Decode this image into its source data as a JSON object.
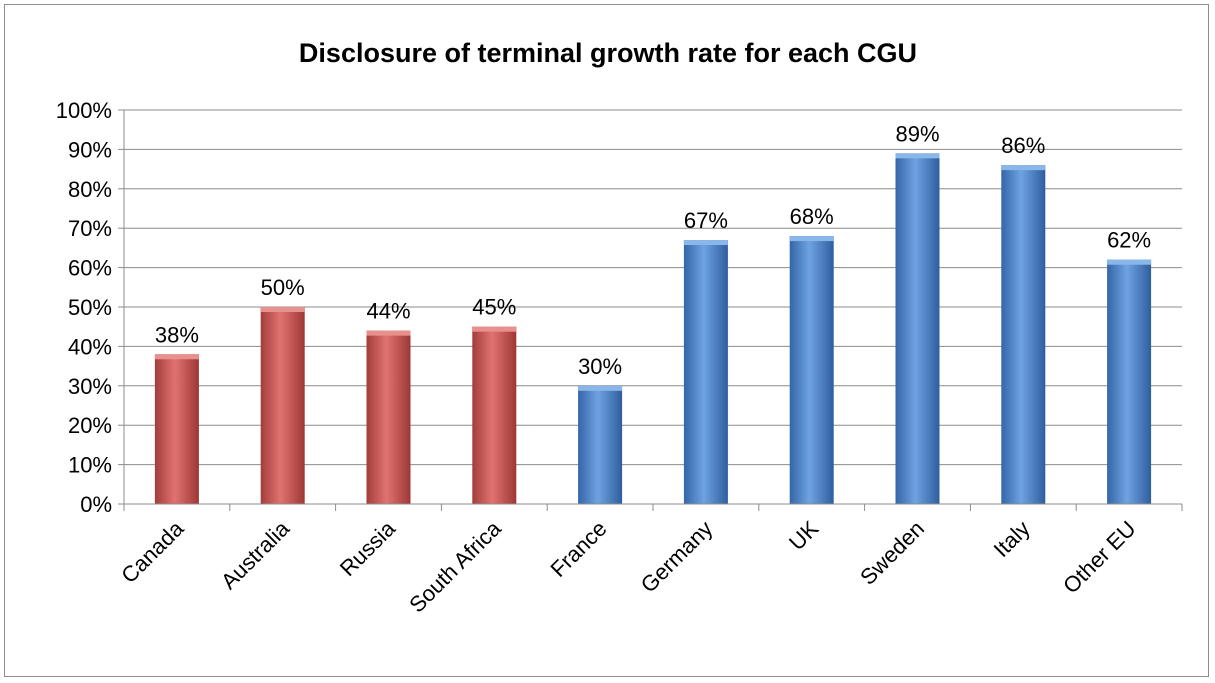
{
  "chart_data": {
    "type": "bar",
    "title": "Disclosure of terminal growth rate for each CGU",
    "xlabel": "",
    "ylabel": "",
    "categories": [
      "Canada",
      "Australia",
      "Russia",
      "South Africa",
      "France",
      "Germany",
      "UK",
      "Sweden",
      "Italy",
      "Other EU"
    ],
    "values": [
      38,
      50,
      44,
      45,
      30,
      67,
      68,
      89,
      86,
      62
    ],
    "data_labels": [
      "38%",
      "50%",
      "44%",
      "45%",
      "30%",
      "67%",
      "68%",
      "89%",
      "86%",
      "62%"
    ],
    "bar_groups": [
      "red",
      "red",
      "red",
      "red",
      "blue",
      "blue",
      "blue",
      "blue",
      "blue",
      "blue"
    ],
    "ylim": [
      0,
      100
    ],
    "y_ticks": [
      "0%",
      "10%",
      "20%",
      "30%",
      "40%",
      "50%",
      "60%",
      "70%",
      "80%",
      "90%",
      "100%"
    ],
    "grid": true,
    "legend": "none",
    "colors": {
      "red": "#c0504d",
      "blue": "#4f81bd"
    }
  }
}
